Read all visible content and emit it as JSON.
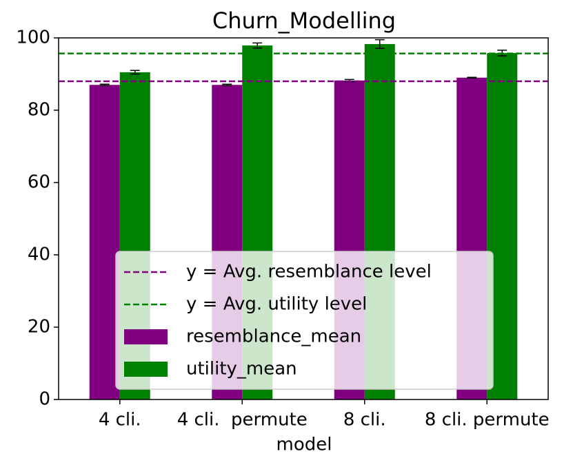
{
  "chart_data": {
    "type": "bar",
    "title": "Churn_Modelling",
    "x_label": "model",
    "categories": [
      "4 cli.",
      "4 cli.  permute",
      "8 cli.",
      "8 cli. permute"
    ],
    "series": [
      {
        "name": "resemblance_mean",
        "color": "#800080",
        "values": [
          87.0,
          87.0,
          88.2,
          89.0
        ],
        "errors": [
          0.2,
          0.2,
          0.3,
          0.1
        ]
      },
      {
        "name": "utility_mean",
        "color": "#008000",
        "values": [
          90.5,
          97.9,
          98.3,
          95.8
        ],
        "errors": [
          0.5,
          0.7,
          1.2,
          0.8
        ]
      }
    ],
    "reference_lines": [
      {
        "name": "y = Avg. resemblance level",
        "value": 88.0,
        "color": "#800080"
      },
      {
        "name": "y = Avg. utility level",
        "value": 95.7,
        "color": "#008000"
      }
    ],
    "ylim": [
      0,
      100
    ],
    "yticks": [
      0,
      20,
      40,
      60,
      80,
      100
    ],
    "legend": "lower center"
  }
}
